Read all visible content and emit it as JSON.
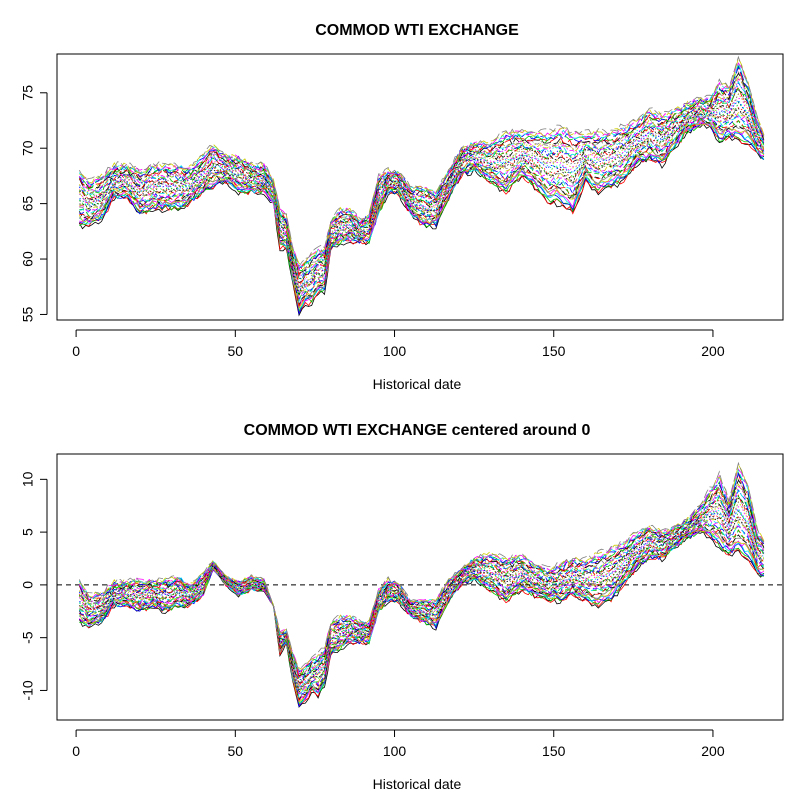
{
  "chart_data": [
    {
      "type": "line",
      "title": "COMMOD WTI EXCHANGE",
      "xlabel": "Historical date",
      "ylabel": "",
      "xlim": [
        -6,
        222
      ],
      "ylim": [
        54.5,
        78.5
      ],
      "xticks": [
        0,
        50,
        100,
        150,
        200
      ],
      "yticks": [
        55,
        60,
        65,
        70,
        75
      ],
      "n_series": 40,
      "series_colors": [
        "#000000",
        "#ff0000",
        "#00cd00",
        "#0000ff",
        "#00e5ee",
        "#ff00ff",
        "#cdcd00",
        "#808080"
      ],
      "line_styles": [
        "solid",
        "dashed",
        "dotted",
        "dotdash",
        "longdash",
        "twodash"
      ],
      "envelope_x": [
        1,
        4,
        8,
        12,
        16,
        20,
        24,
        28,
        32,
        36,
        40,
        43,
        47,
        51,
        55,
        59,
        62,
        64,
        66,
        68,
        70,
        72,
        74,
        76,
        78,
        80,
        83,
        86,
        89,
        92,
        95,
        98,
        101,
        105,
        109,
        113,
        117,
        121,
        125,
        130,
        135,
        140,
        144,
        148,
        152,
        156,
        160,
        164,
        168,
        172,
        176,
        180,
        184,
        188,
        192,
        196,
        199,
        202,
        205,
        208,
        211,
        214,
        216
      ],
      "envelope_top": [
        68,
        67,
        67.5,
        68.5,
        68.5,
        68,
        68.5,
        68.5,
        68.5,
        68.3,
        69.3,
        70.4,
        69.3,
        69.3,
        68.5,
        68.5,
        67,
        64.5,
        63.9,
        61,
        59.5,
        60,
        60.5,
        61,
        61,
        63.5,
        64.5,
        64.5,
        63.5,
        64,
        67.5,
        68,
        68,
        66.5,
        66.5,
        66,
        68,
        70,
        70.5,
        70.5,
        71.5,
        71.5,
        71.5,
        71.5,
        72,
        71.5,
        71.5,
        71.5,
        71.5,
        72,
        72.5,
        73.5,
        73,
        73.5,
        74,
        74.5,
        74.5,
        76,
        75.5,
        78.2,
        76,
        72.5,
        71.3
      ],
      "envelope_bottom": [
        63,
        63,
        63.5,
        65.5,
        65.5,
        64,
        64.5,
        64.5,
        64.5,
        65,
        66,
        66.5,
        67,
        66,
        66,
        66,
        65,
        61,
        61,
        58,
        55,
        56,
        56,
        57,
        57,
        61,
        61.5,
        61.5,
        61.5,
        61.5,
        64,
        66,
        66,
        64,
        63,
        63,
        65.5,
        67.5,
        68,
        67,
        66,
        67.5,
        66.5,
        65,
        65,
        64,
        67,
        66,
        66.5,
        67,
        68.5,
        69,
        68.5,
        70,
        71.5,
        72,
        72,
        70.5,
        71,
        70.5,
        70.5,
        69.5,
        69
      ],
      "reference_line": null
    },
    {
      "type": "line",
      "title": "COMMOD WTI EXCHANGE centered around 0",
      "xlabel": "Historical date",
      "ylabel": "",
      "xlim": [
        -6,
        222
      ],
      "ylim": [
        -12.8,
        12.4
      ],
      "xticks": [
        0,
        50,
        100,
        150,
        200
      ],
      "yticks": [
        -10,
        -5,
        0,
        5,
        10
      ],
      "n_series": 40,
      "series_colors": [
        "#000000",
        "#ff0000",
        "#00cd00",
        "#0000ff",
        "#00e5ee",
        "#ff00ff",
        "#cdcd00",
        "#808080"
      ],
      "line_styles": [
        "solid",
        "dashed",
        "dotted",
        "dotdash",
        "longdash",
        "twodash"
      ],
      "envelope_x": [
        1,
        4,
        8,
        12,
        16,
        20,
        24,
        28,
        32,
        36,
        40,
        43,
        47,
        51,
        55,
        59,
        62,
        64,
        66,
        68,
        70,
        72,
        74,
        76,
        78,
        80,
        83,
        86,
        89,
        92,
        95,
        98,
        101,
        105,
        109,
        113,
        117,
        121,
        125,
        130,
        135,
        140,
        144,
        148,
        152,
        156,
        160,
        164,
        168,
        172,
        176,
        180,
        184,
        188,
        192,
        196,
        199,
        202,
        205,
        208,
        211,
        214,
        216
      ],
      "envelope_top": [
        0.5,
        -1,
        -0.8,
        0.3,
        0.3,
        0.5,
        0.3,
        0.5,
        0.8,
        0,
        1,
        2.3,
        0.8,
        0.3,
        0.8,
        0.5,
        -2,
        -4.5,
        -4.3,
        -6.5,
        -8,
        -7.5,
        -7,
        -6.5,
        -6,
        -3.5,
        -3,
        -3,
        -3.5,
        -3.5,
        -0.5,
        0.5,
        0.3,
        -1.5,
        -1.5,
        -1.5,
        0.5,
        1.5,
        2.5,
        3,
        2.5,
        2.8,
        2,
        1.5,
        2,
        2.5,
        2.5,
        3,
        3.5,
        4,
        5,
        5.5,
        5,
        5.5,
        6.2,
        7.5,
        9,
        10.5,
        8,
        11.5,
        9.5,
        5,
        4.3
      ],
      "envelope_bottom": [
        -3.5,
        -4,
        -3.5,
        -2,
        -2,
        -2.5,
        -2,
        -2.5,
        -2,
        -2,
        -1,
        1.5,
        0,
        -1,
        -0.5,
        -0.5,
        -2,
        -6.5,
        -5.5,
        -9,
        -11.5,
        -11,
        -10,
        -10.5,
        -9.5,
        -6.5,
        -6,
        -5.5,
        -5.5,
        -5.5,
        -2.5,
        -1.5,
        -1.5,
        -3,
        -3.5,
        -4,
        -1.5,
        0,
        0.5,
        -0.5,
        -1.5,
        -0.5,
        -1,
        -1.5,
        -1.5,
        -1,
        -1.5,
        -2,
        -1.5,
        0,
        1.5,
        2.5,
        2.5,
        3.5,
        4.5,
        5,
        4.5,
        3.5,
        2.8,
        3,
        2.5,
        1,
        0.8
      ],
      "reference_line": {
        "y": 0,
        "style": "dashed"
      }
    }
  ]
}
